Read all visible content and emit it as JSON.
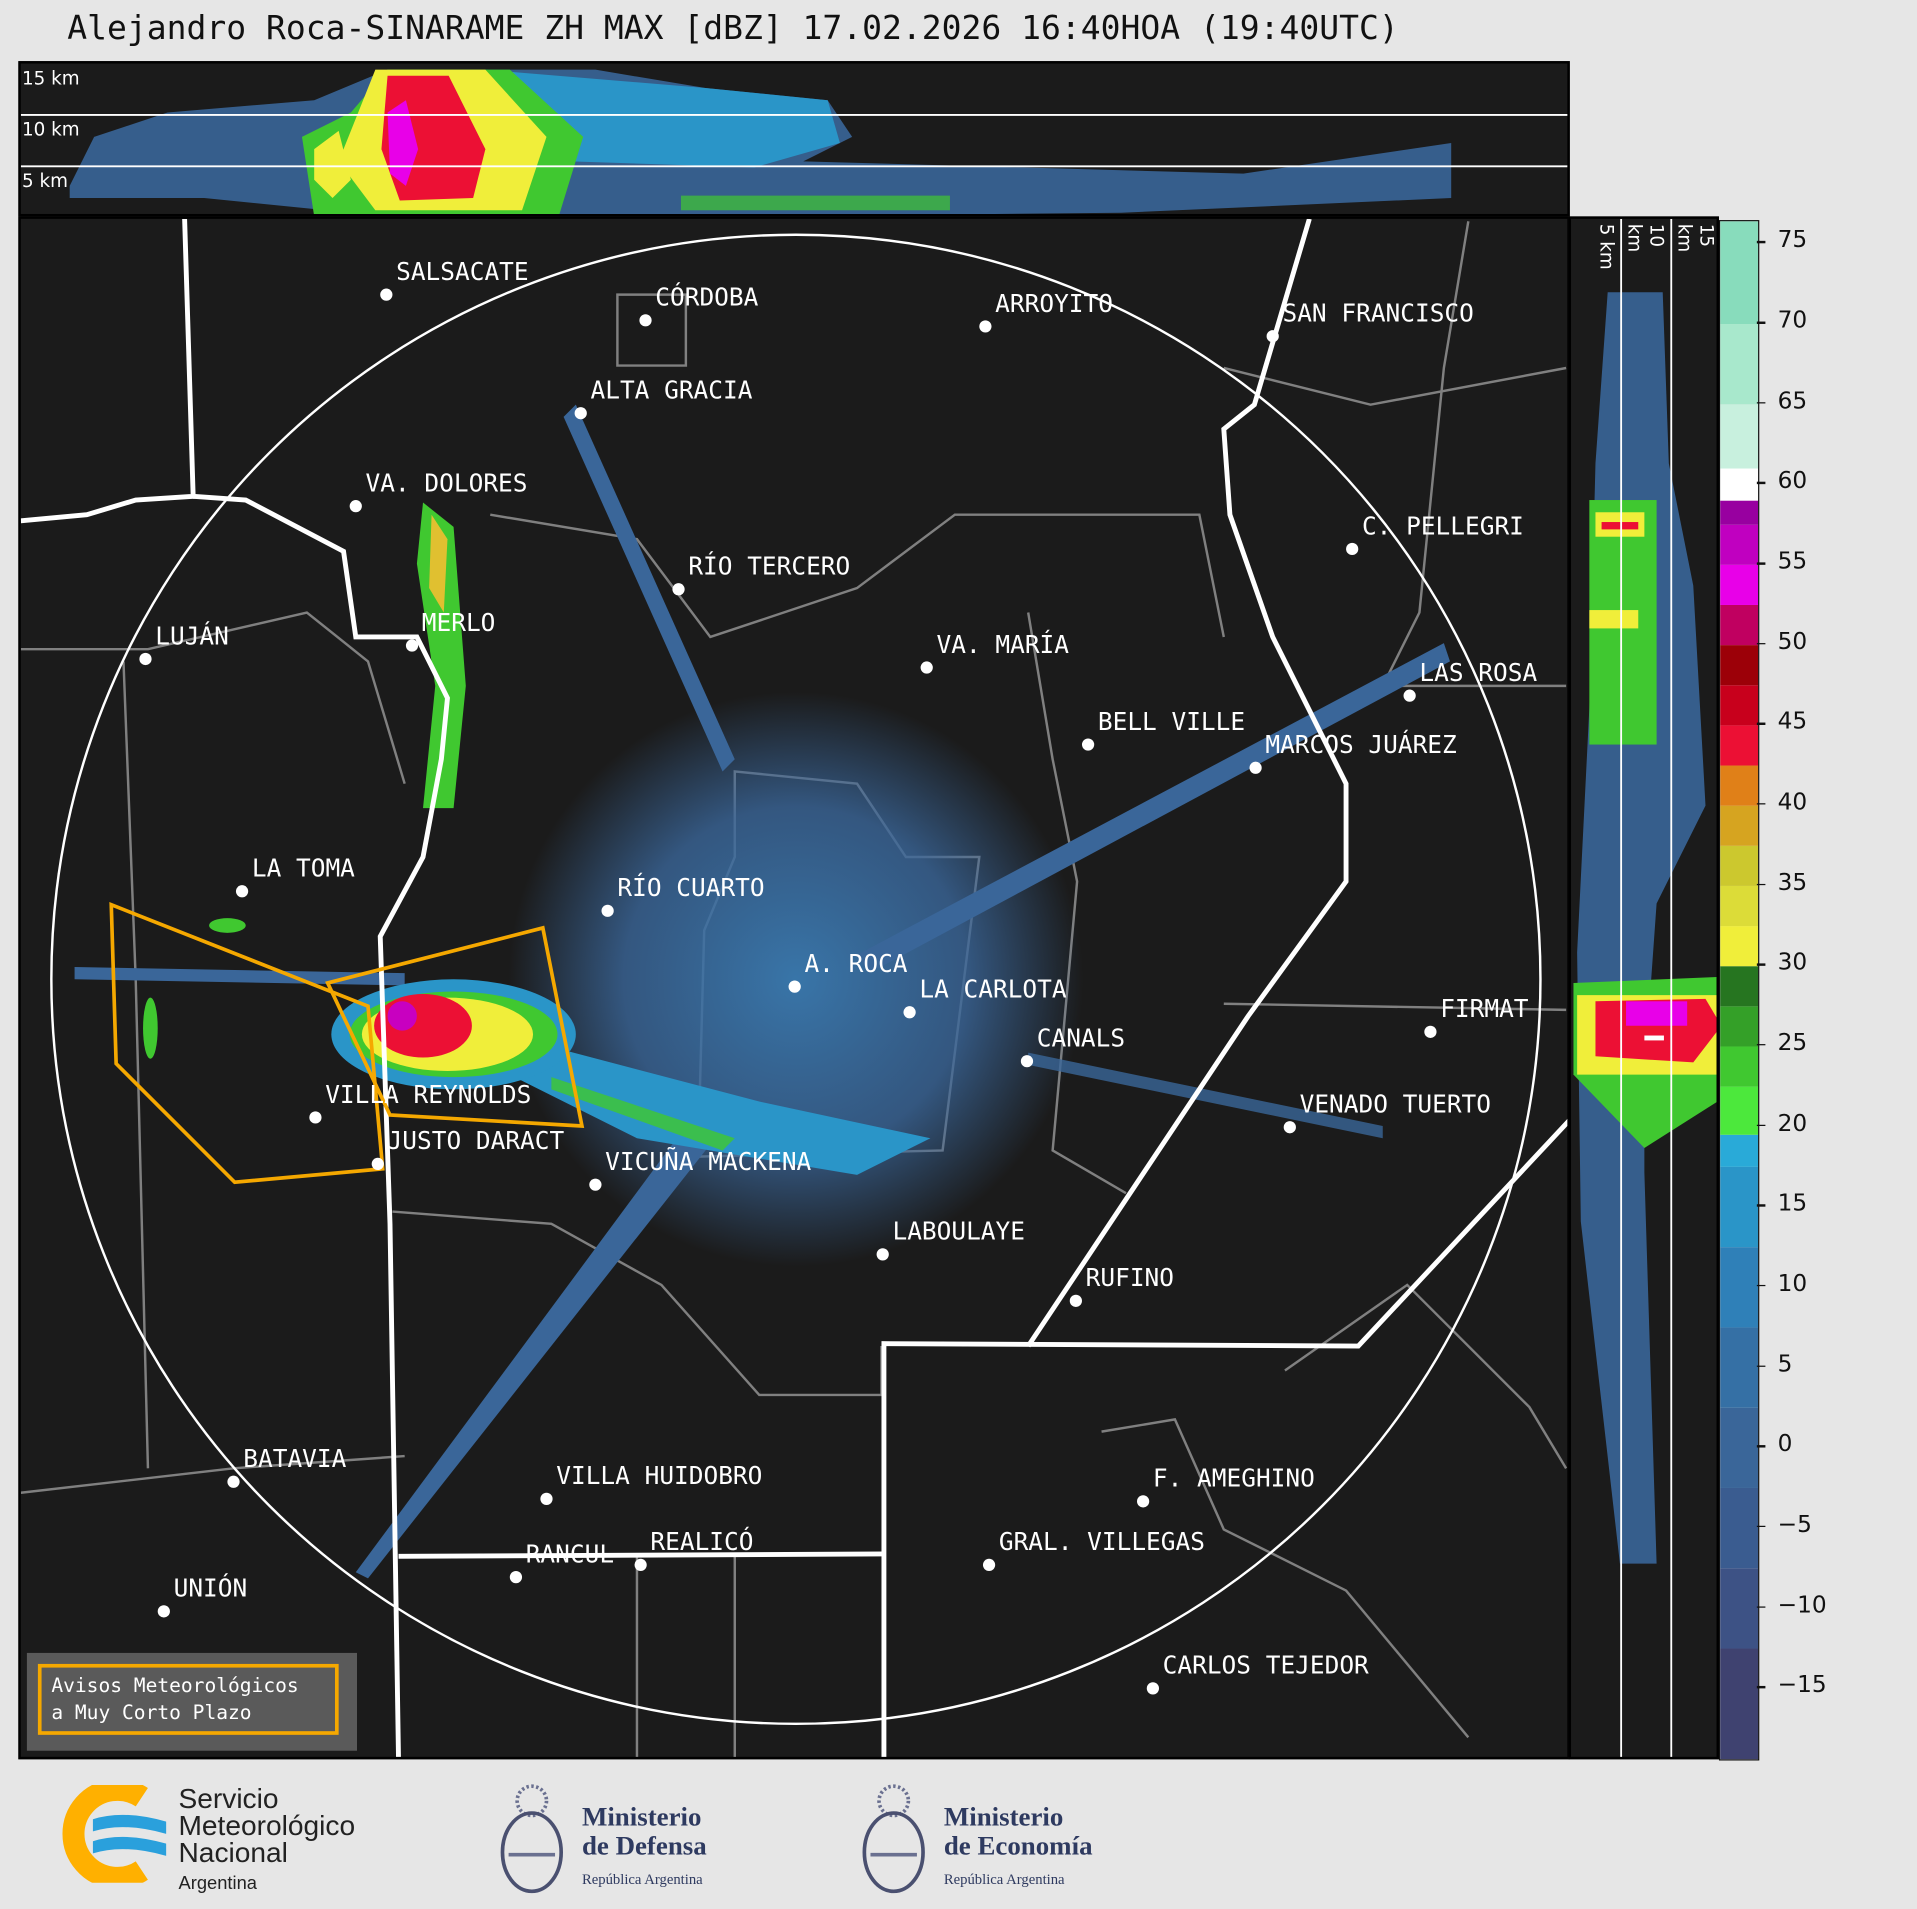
{
  "title": "Alejandro Roca-SINARAME ZH MAX [dBZ] 17.02.2026 16:40HOA (19:40UTC)",
  "top_panel": {
    "labels": [
      "15 km",
      "10 km",
      "5 km"
    ]
  },
  "side_panel": {
    "labels": [
      "5 km",
      "10 km",
      "15 km"
    ]
  },
  "cities": [
    "SALSACATE",
    "CÓRDOBA",
    "ARROYITO",
    "SAN FRANCISCO",
    "ALTA GRACIA",
    "VA. DOLORES",
    "C. PELLEGRI",
    "RÍO TERCERO",
    "LUJÁN",
    "MERLO",
    "VA. MARÍA",
    "LAS ROSA",
    "BELL VILLE",
    "MARCOS JUÁREZ",
    "LA TOMA",
    "RÍO CUARTO",
    "A. ROCA",
    "LA CARLOTA",
    "CANALS",
    "FIRMAT",
    "VENADO TUERTO",
    "VILLA REYNOLDS",
    "JUSTO DARACT",
    "VICUÑA MACKENA",
    "LABOULAYE",
    "RUFINO",
    "BATAVIA",
    "VILLA HUIDOBRO",
    "F. AMEGHINO",
    "RANCUL",
    "REALICÓ",
    "GRAL. VILLEGAS",
    "UNIÓN",
    "CARLOS TEJEDOR"
  ],
  "warning_box": {
    "line1": "Avisos Meteorológicos",
    "line2": "a Muy Corto Plazo",
    "color": "#f5a800"
  },
  "colorbar": {
    "unit": "dBZ",
    "min": -19.4,
    "max": 76.4,
    "ticks": [
      "75",
      "70",
      "65",
      "60",
      "55",
      "50",
      "45",
      "40",
      "35",
      "30",
      "25",
      "20",
      "15",
      "10",
      "5",
      "0",
      "−5",
      "−10",
      "−15"
    ],
    "tick_values": [
      75,
      70,
      65,
      60,
      55,
      50,
      45,
      40,
      35,
      30,
      25,
      20,
      15,
      10,
      5,
      0,
      -5,
      -10,
      -15
    ],
    "bands": [
      {
        "from": -19.4,
        "to": -12.5,
        "color": "#3f4270"
      },
      {
        "from": -12.5,
        "to": -7.5,
        "color": "#3d5285"
      },
      {
        "from": -7.5,
        "to": -2.5,
        "color": "#3a5c90"
      },
      {
        "from": -2.5,
        "to": 2.5,
        "color": "#3a6699"
      },
      {
        "from": 2.5,
        "to": 7.5,
        "color": "#3570a5"
      },
      {
        "from": 7.5,
        "to": 12.5,
        "color": "#2f80b8"
      },
      {
        "from": 12.5,
        "to": 17.5,
        "color": "#2a95c8"
      },
      {
        "from": 17.5,
        "to": 19.5,
        "color": "#29aad8"
      },
      {
        "from": 19.5,
        "to": 22.5,
        "color": "#4ce83c"
      },
      {
        "from": 22.5,
        "to": 25,
        "color": "#40c830"
      },
      {
        "from": 25,
        "to": 27.5,
        "color": "#34a028"
      },
      {
        "from": 27.5,
        "to": 30,
        "color": "#267520"
      },
      {
        "from": 30,
        "to": 32.5,
        "color": "#f0ee3a"
      },
      {
        "from": 32.5,
        "to": 35,
        "color": "#dcdc38"
      },
      {
        "from": 35,
        "to": 37.5,
        "color": "#ccc82e"
      },
      {
        "from": 37.5,
        "to": 40,
        "color": "#d6a420"
      },
      {
        "from": 40,
        "to": 42.5,
        "color": "#e08018"
      },
      {
        "from": 42.5,
        "to": 45,
        "color": "#ec1034"
      },
      {
        "from": 45,
        "to": 47.5,
        "color": "#c8001c"
      },
      {
        "from": 47.5,
        "to": 50,
        "color": "#9c0008"
      },
      {
        "from": 50,
        "to": 52.5,
        "color": "#c00060"
      },
      {
        "from": 52.5,
        "to": 55,
        "color": "#e800e8"
      },
      {
        "from": 55,
        "to": 57.5,
        "color": "#c000c0"
      },
      {
        "from": 57.5,
        "to": 59,
        "color": "#9800a0"
      },
      {
        "from": 59,
        "to": 61,
        "color": "#ffffff"
      },
      {
        "from": 61,
        "to": 65,
        "color": "#c8f0de"
      },
      {
        "from": 65,
        "to": 70,
        "color": "#a8e8cc"
      },
      {
        "from": 70,
        "to": 76.4,
        "color": "#88dcbc"
      }
    ]
  },
  "logos": {
    "smn": {
      "line1": "Servicio",
      "line2": "Meteorológico",
      "line3": "Nacional",
      "line4": "Argentina"
    },
    "defensa": {
      "line1": "Ministerio",
      "line2": "de Defensa",
      "line3": "República Argentina"
    },
    "economia": {
      "line1": "Ministerio",
      "line2": "de Economía",
      "line3": "República Argentina"
    }
  }
}
